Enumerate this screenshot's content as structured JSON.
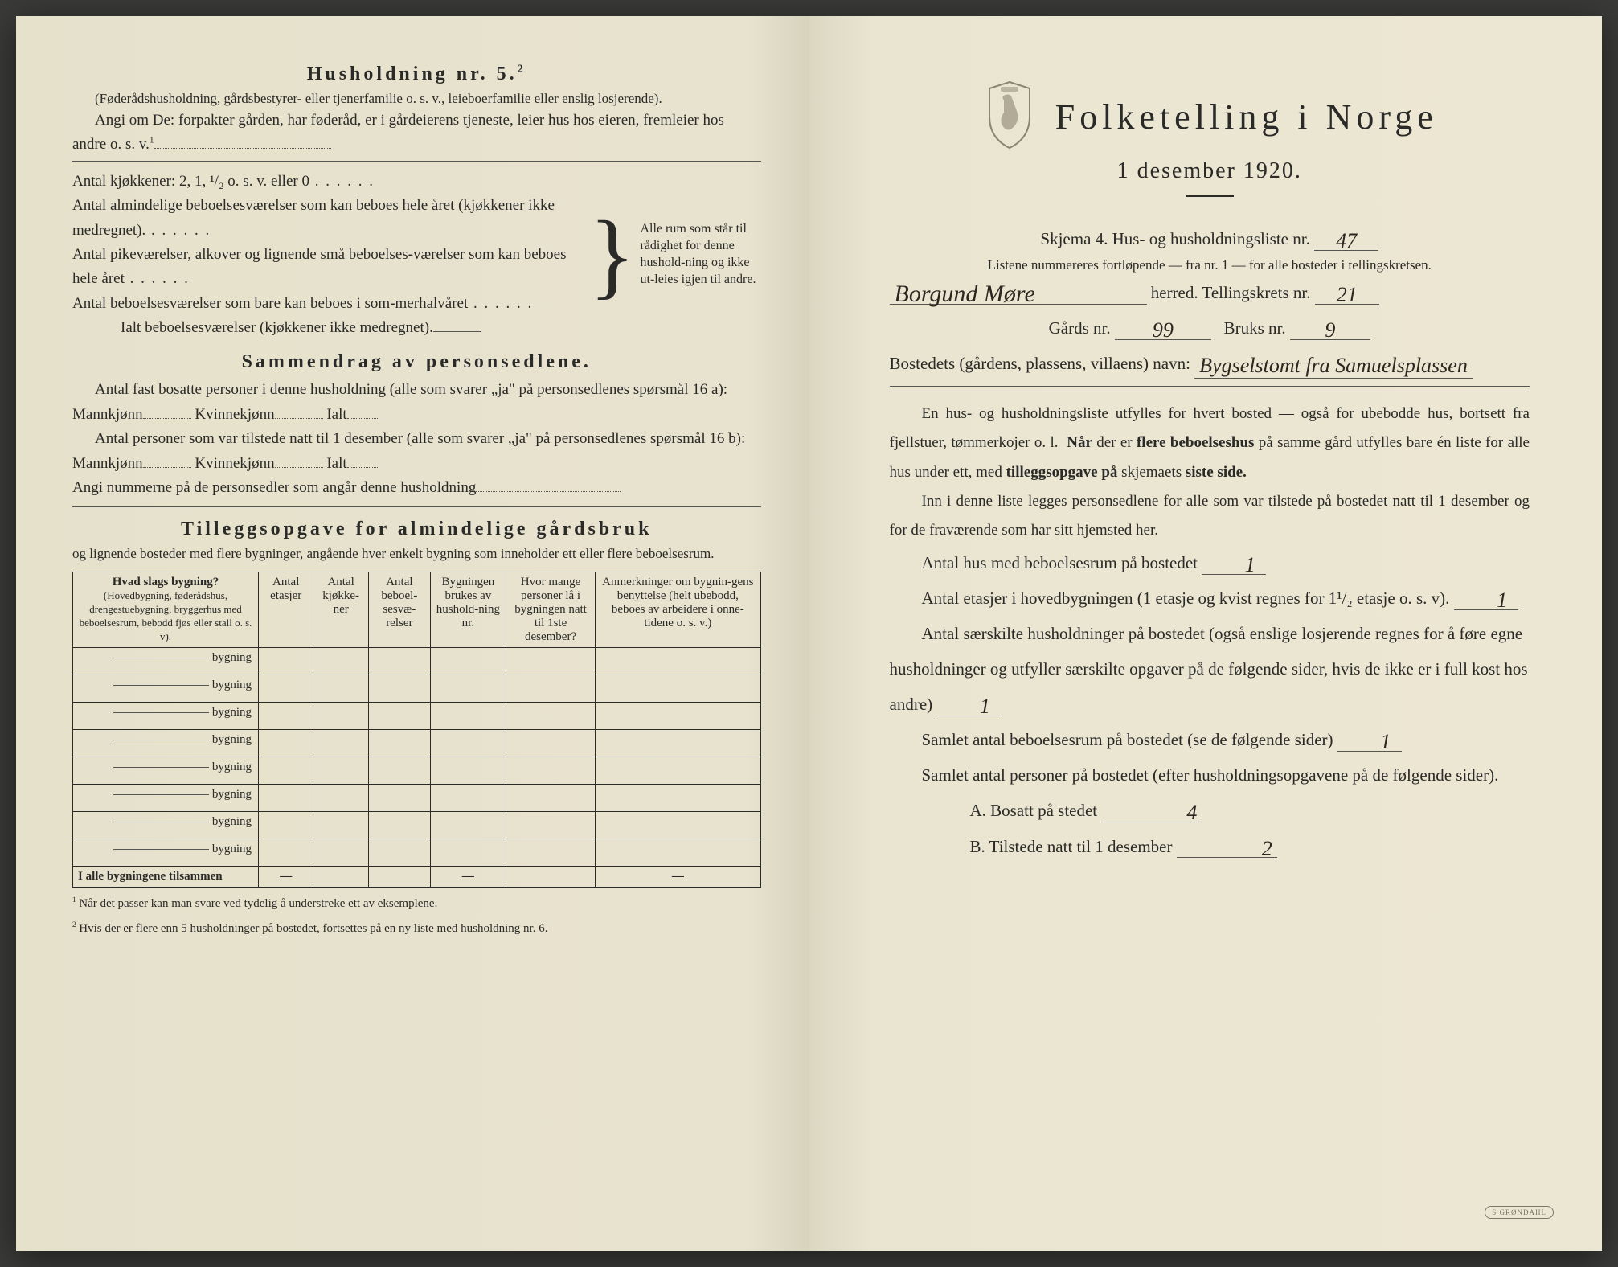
{
  "left": {
    "h5_title": "Husholdning nr. 5.",
    "h5_sup": "2",
    "h5_par": "(Føderådshusholdning, gårdsbestyrer- eller tjenerfamilie o. s. v., leieboerfamilie eller enslig losjerende).",
    "h5_angi": "Angi om De:  forpakter gården, har føderåd, er i gårdeierens tjeneste, leier hus hos eieren, fremleier hos andre o. s. v.",
    "kitchens": "Antal kjøkkener: 2, 1, ¹/₂ o. s. v. eller 0",
    "rooms1": "Antal almindelige beboelsesværelser som kan beboes hele året (kjøkkener ikke medregnet).",
    "rooms2": "Antal pikeværelser, alkover og lignende små beboelses-værelser som kan beboes hele året",
    "rooms3": "Antal beboelsesværelser som bare kan beboes i som-merhalvåret",
    "rooms_total": "Ialt beboelsesværelser  (kjøkkener ikke medregnet).",
    "brace_text": "Alle rum som står til rådighet for denne hushold-ning og ikke ut-leies igjen til andre.",
    "sammendrag_title": "Sammendrag av personsedlene.",
    "s_line1a": "Antal fast bosatte personer i denne husholdning (alle som svarer „ja\" på personsedlenes spørsmål 16 a): Mannkjønn",
    "s_kvin": "Kvinnekjønn",
    "s_ialt": "Ialt",
    "s_line2a": "Antal personer som var tilstede natt til 1 desember (alle som svarer „ja\" på personsedlenes spørsmål 16 b): Mannkjønn",
    "s_line3": "Angi nummerne på de personsedler som angår denne husholdning",
    "tillegg_title": "Tilleggsopgave for almindelige gårdsbruk",
    "tillegg_intro": "og lignende bosteder med flere bygninger, angående hver enkelt bygning som inneholder ett eller flere beboelsesrum.",
    "th1": "Hvad slags bygning?",
    "th1_sub": "(Hovedbygning, føderådshus, drengestuebygning, bryggerhus med beboelsesrum, bebodd fjøs eller stall o. s. v).",
    "th2": "Antal etasjer",
    "th3": "Antal kjøkke-ner",
    "th4": "Antal beboel-sesvæ-relser",
    "th5": "Bygningen brukes av hushold-ning nr.",
    "th6": "Hvor mange personer lå i bygningen natt til 1ste desember?",
    "th7": "Anmerkninger om bygnin-gens benyttelse (helt ubebodd, beboes av arbeidere i onne-tidene o. s. v.)",
    "bygning_label": "bygning",
    "footer_row": "I alle bygningene tilsammen",
    "fn1": "Når det passer kan man svare ved tydelig å understreke ett av eksemplene.",
    "fn2": "Hvis der er flere enn 5 husholdninger på bostedet, fortsettes på en ny liste med husholdning nr. 6."
  },
  "right": {
    "main_title": "Folketelling  i  Norge",
    "sub_title": "1 desember 1920.",
    "skjema_line": "Skjema 4.   Hus- og husholdningsliste nr.",
    "skjema_nr": "47",
    "listene": "Listene nummereres fortløpende — fra nr. 1 — for alle bosteder i tellingskretsen.",
    "herred_value": "Borgund Møre",
    "herred_label": "herred.   Tellingskrets nr.",
    "krets_nr": "21",
    "gard_label": "Gårds nr.",
    "gard_nr": "99",
    "bruk_label": "Bruks nr.",
    "bruk_nr": "9",
    "bosted_label": "Bostedets (gårdens, plassens, villaens) navn:",
    "bosted_value": "Bygselstomt fra Samuelsplassen",
    "para1": "En hus- og husholdningsliste utfylles for hvert bosted — også for ubebodde hus, bortsett fra fjellstuer, tømmerkojer o. l.  Når der er flere beboelseshus på samme gård utfylles bare én liste for alle hus under ett, med tilleggsopgave på skjemaets siste side.",
    "para2": "Inn i denne liste legges personsedlene for alle som var tilstede på bostedet natt til 1 desember og for de fraværende som har sitt hjemsted her.",
    "q1": "Antal hus med beboelsesrum på bostedet",
    "q1_v": "1",
    "q2a": "Antal etasjer i hovedbygningen (1 etasje og kvist regnes for 1¹/₂ etasje o. s. v).",
    "q2_v": "1",
    "q3": "Antal særskilte husholdninger på bostedet (også enslige losjerende regnes for å føre egne husholdninger og utfyller særskilte opgaver på de følgende sider, hvis de ikke er i full kost hos andre)",
    "q3_v": "1",
    "q4": "Samlet antal beboelsesrum på bostedet (se de følgende sider)",
    "q4_v": "1",
    "q5": "Samlet antal personer på bostedet (efter husholdningsopgavene på de følgende sider).",
    "qA": "A.  Bosatt på stedet",
    "qA_v": "4",
    "qB": "B.  Tilstede natt til 1 desember",
    "qB_v": "2",
    "crest_color": "#8a8470"
  }
}
